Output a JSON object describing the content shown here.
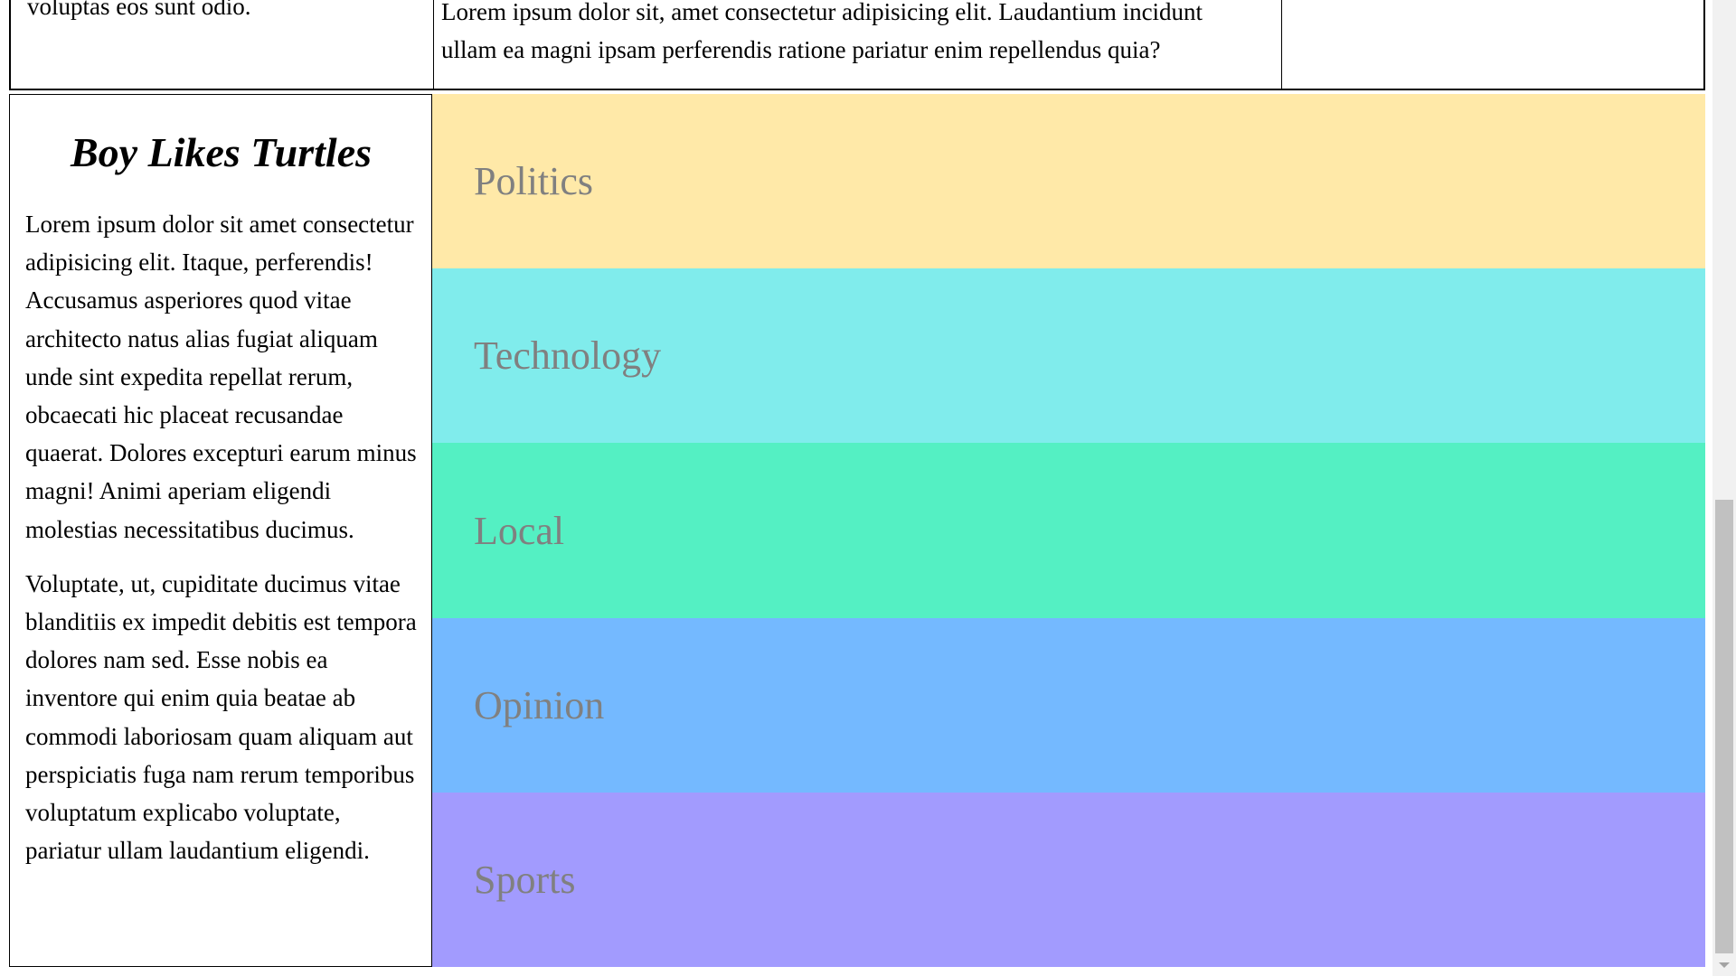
{
  "top_table": {
    "cell1_text": "voluptas eos sunt odio.",
    "cell2_text": "Lorem ipsum dolor sit, amet consectetur adipisicing elit. Laudantium incidunt ullam ea magni ipsam perferendis ratione pariatur enim repellendus quia?",
    "cell3_text": ""
  },
  "article": {
    "title": "Boy Likes Turtles",
    "paragraphs": [
      "Lorem ipsum dolor sit amet consectetur adipisicing elit. Itaque, perferendis! Accusamus asperiores quod vitae architecto natus alias fugiat aliquam unde sint expedita repellat rerum, obcaecati hic placeat recusandae quaerat. Dolores excepturi earum minus magni! Animi aperiam eligendi molestias necessitatibus ducimus.",
      "Voluptate, ut, cupiditate ducimus vitae blanditiis ex impedit debitis est tempora dolores nam sed. Esse nobis ea inventore qui enim quia beatae ab commodi laboriosam quam aliquam aut perspiciatis fuga nam rerum temporibus voluptatum explicabo voluptate, pariatur ullam laudantium eligendi."
    ]
  },
  "categories": [
    {
      "label": "Politics",
      "color": "#ffe9a8"
    },
    {
      "label": "Technology",
      "color": "#80ecec"
    },
    {
      "label": "Local",
      "color": "#54f0c3"
    },
    {
      "label": "Opinion",
      "color": "#74b9ff"
    },
    {
      "label": "Sports",
      "color": "#a29bfe"
    }
  ],
  "colors": {
    "category_text": "#808080",
    "scrollbar_track": "#f1f1f1",
    "scrollbar_thumb": "#c1c1c1"
  }
}
